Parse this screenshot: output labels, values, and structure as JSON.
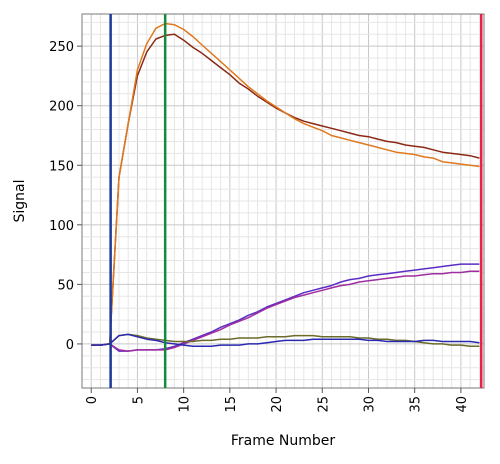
{
  "chart_data": {
    "type": "line",
    "title": "",
    "xlabel": "Frame Number",
    "ylabel": "Signal",
    "xlim": [
      -1,
      42.5
    ],
    "ylim": [
      -37,
      277
    ],
    "x_ticks": [
      0,
      5,
      10,
      15,
      20,
      25,
      30,
      35,
      40
    ],
    "y_ticks": [
      0,
      50,
      100,
      150,
      200,
      250
    ],
    "grid": true,
    "legend": "none",
    "vertical_markers": [
      {
        "x": 2.1,
        "color": "#1f3a9a"
      },
      {
        "x": 8.0,
        "color": "#168a3a"
      },
      {
        "x": 42.2,
        "color": "#e8204a"
      }
    ],
    "series": [
      {
        "color": "#8b2a14",
        "points": [
          [
            0,
            -1
          ],
          [
            1,
            -1
          ],
          [
            2,
            0
          ],
          [
            3,
            140
          ],
          [
            4,
            185
          ],
          [
            5,
            225
          ],
          [
            6,
            245
          ],
          [
            7,
            256
          ],
          [
            8,
            259
          ],
          [
            9,
            260
          ],
          [
            10,
            255
          ],
          [
            11,
            249
          ],
          [
            12,
            244
          ],
          [
            13,
            238
          ],
          [
            14,
            232
          ],
          [
            15,
            226
          ],
          [
            16,
            219
          ],
          [
            17,
            214
          ],
          [
            18,
            208
          ],
          [
            19,
            203
          ],
          [
            20,
            198
          ],
          [
            21,
            194
          ],
          [
            22,
            190
          ],
          [
            23,
            187
          ],
          [
            24,
            185
          ],
          [
            25,
            183
          ],
          [
            26,
            181
          ],
          [
            27,
            179
          ],
          [
            28,
            177
          ],
          [
            29,
            175
          ],
          [
            30,
            174
          ],
          [
            31,
            172
          ],
          [
            32,
            170
          ],
          [
            33,
            169
          ],
          [
            34,
            167
          ],
          [
            35,
            166
          ],
          [
            36,
            165
          ],
          [
            37,
            163
          ],
          [
            38,
            161
          ],
          [
            39,
            160
          ],
          [
            40,
            159
          ],
          [
            41,
            158
          ],
          [
            42,
            156
          ]
        ]
      },
      {
        "color": "#e0781e",
        "points": [
          [
            0,
            -1
          ],
          [
            1,
            -1
          ],
          [
            2,
            0
          ],
          [
            3,
            140
          ],
          [
            4,
            185
          ],
          [
            5,
            230
          ],
          [
            6,
            252
          ],
          [
            7,
            265
          ],
          [
            8,
            269
          ],
          [
            9,
            268
          ],
          [
            10,
            264
          ],
          [
            11,
            258
          ],
          [
            12,
            251
          ],
          [
            13,
            244
          ],
          [
            14,
            237
          ],
          [
            15,
            230
          ],
          [
            16,
            223
          ],
          [
            17,
            216
          ],
          [
            18,
            210
          ],
          [
            19,
            204
          ],
          [
            20,
            199
          ],
          [
            21,
            194
          ],
          [
            22,
            189
          ],
          [
            23,
            185
          ],
          [
            24,
            182
          ],
          [
            25,
            179
          ],
          [
            26,
            175
          ],
          [
            27,
            173
          ],
          [
            28,
            171
          ],
          [
            29,
            169
          ],
          [
            30,
            167
          ],
          [
            31,
            165
          ],
          [
            32,
            163
          ],
          [
            33,
            161
          ],
          [
            34,
            160
          ],
          [
            35,
            159
          ],
          [
            36,
            157
          ],
          [
            37,
            156
          ],
          [
            38,
            153
          ],
          [
            39,
            152
          ],
          [
            40,
            151
          ],
          [
            41,
            150
          ],
          [
            42,
            149
          ]
        ]
      },
      {
        "color": "#5a2ec4",
        "points": [
          [
            0,
            -1
          ],
          [
            1,
            -1
          ],
          [
            2,
            0
          ],
          [
            3,
            -6
          ],
          [
            4,
            -6
          ],
          [
            5,
            -5
          ],
          [
            6,
            -5
          ],
          [
            7,
            -5
          ],
          [
            8,
            -4
          ],
          [
            9,
            -2
          ],
          [
            10,
            1
          ],
          [
            11,
            4
          ],
          [
            12,
            7
          ],
          [
            13,
            10
          ],
          [
            14,
            14
          ],
          [
            15,
            17
          ],
          [
            16,
            20
          ],
          [
            17,
            24
          ],
          [
            18,
            27
          ],
          [
            19,
            31
          ],
          [
            20,
            34
          ],
          [
            21,
            37
          ],
          [
            22,
            40
          ],
          [
            23,
            43
          ],
          [
            24,
            45
          ],
          [
            25,
            47
          ],
          [
            26,
            49
          ],
          [
            27,
            52
          ],
          [
            28,
            54
          ],
          [
            29,
            55
          ],
          [
            30,
            57
          ],
          [
            31,
            58
          ],
          [
            32,
            59
          ],
          [
            33,
            60
          ],
          [
            34,
            61
          ],
          [
            35,
            62
          ],
          [
            36,
            63
          ],
          [
            37,
            64
          ],
          [
            38,
            65
          ],
          [
            39,
            66
          ],
          [
            40,
            67
          ],
          [
            41,
            67
          ],
          [
            42,
            67
          ]
        ]
      },
      {
        "color": "#a02ca0",
        "points": [
          [
            0,
            -1
          ],
          [
            1,
            -1
          ],
          [
            2,
            0
          ],
          [
            3,
            -5
          ],
          [
            4,
            -6
          ],
          [
            5,
            -5
          ],
          [
            6,
            -5
          ],
          [
            7,
            -5
          ],
          [
            8,
            -5
          ],
          [
            9,
            -3
          ],
          [
            10,
            0
          ],
          [
            11,
            3
          ],
          [
            12,
            6
          ],
          [
            13,
            9
          ],
          [
            14,
            12
          ],
          [
            15,
            16
          ],
          [
            16,
            19
          ],
          [
            17,
            22
          ],
          [
            18,
            26
          ],
          [
            19,
            30
          ],
          [
            20,
            33
          ],
          [
            21,
            36
          ],
          [
            22,
            39
          ],
          [
            23,
            41
          ],
          [
            24,
            43
          ],
          [
            25,
            45
          ],
          [
            26,
            47
          ],
          [
            27,
            49
          ],
          [
            28,
            50
          ],
          [
            29,
            52
          ],
          [
            30,
            53
          ],
          [
            31,
            54
          ],
          [
            32,
            55
          ],
          [
            33,
            56
          ],
          [
            34,
            57
          ],
          [
            35,
            57
          ],
          [
            36,
            58
          ],
          [
            37,
            59
          ],
          [
            38,
            59
          ],
          [
            39,
            60
          ],
          [
            40,
            60
          ],
          [
            41,
            61
          ],
          [
            42,
            61
          ]
        ]
      },
      {
        "color": "#6b6b2a",
        "points": [
          [
            0,
            -1
          ],
          [
            1,
            -1
          ],
          [
            2,
            0
          ],
          [
            3,
            7
          ],
          [
            4,
            8
          ],
          [
            5,
            7
          ],
          [
            6,
            5
          ],
          [
            7,
            4
          ],
          [
            8,
            3
          ],
          [
            9,
            2
          ],
          [
            10,
            2
          ],
          [
            11,
            2
          ],
          [
            12,
            3
          ],
          [
            13,
            3
          ],
          [
            14,
            4
          ],
          [
            15,
            4
          ],
          [
            16,
            5
          ],
          [
            17,
            5
          ],
          [
            18,
            5
          ],
          [
            19,
            6
          ],
          [
            20,
            6
          ],
          [
            21,
            6
          ],
          [
            22,
            7
          ],
          [
            23,
            7
          ],
          [
            24,
            7
          ],
          [
            25,
            6
          ],
          [
            26,
            6
          ],
          [
            27,
            6
          ],
          [
            28,
            6
          ],
          [
            29,
            5
          ],
          [
            30,
            5
          ],
          [
            31,
            4
          ],
          [
            32,
            4
          ],
          [
            33,
            3
          ],
          [
            34,
            3
          ],
          [
            35,
            2
          ],
          [
            36,
            1
          ],
          [
            37,
            0
          ],
          [
            38,
            0
          ],
          [
            39,
            -1
          ],
          [
            40,
            -1
          ],
          [
            41,
            -2
          ],
          [
            42,
            -2
          ]
        ]
      },
      {
        "color": "#2a2ab0",
        "points": [
          [
            0,
            -1
          ],
          [
            1,
            -1
          ],
          [
            2,
            0
          ],
          [
            3,
            7
          ],
          [
            4,
            8
          ],
          [
            5,
            6
          ],
          [
            6,
            4
          ],
          [
            7,
            3
          ],
          [
            8,
            1
          ],
          [
            9,
            0
          ],
          [
            10,
            -1
          ],
          [
            11,
            -2
          ],
          [
            12,
            -2
          ],
          [
            13,
            -2
          ],
          [
            14,
            -1
          ],
          [
            15,
            -1
          ],
          [
            16,
            -1
          ],
          [
            17,
            0
          ],
          [
            18,
            0
          ],
          [
            19,
            1
          ],
          [
            20,
            2
          ],
          [
            21,
            3
          ],
          [
            22,
            3
          ],
          [
            23,
            3
          ],
          [
            24,
            4
          ],
          [
            25,
            4
          ],
          [
            26,
            4
          ],
          [
            27,
            4
          ],
          [
            28,
            4
          ],
          [
            29,
            4
          ],
          [
            30,
            3
          ],
          [
            31,
            3
          ],
          [
            32,
            2
          ],
          [
            33,
            2
          ],
          [
            34,
            2
          ],
          [
            35,
            2
          ],
          [
            36,
            3
          ],
          [
            37,
            3
          ],
          [
            38,
            2
          ],
          [
            39,
            2
          ],
          [
            40,
            2
          ],
          [
            41,
            2
          ],
          [
            42,
            1
          ]
        ]
      }
    ]
  }
}
